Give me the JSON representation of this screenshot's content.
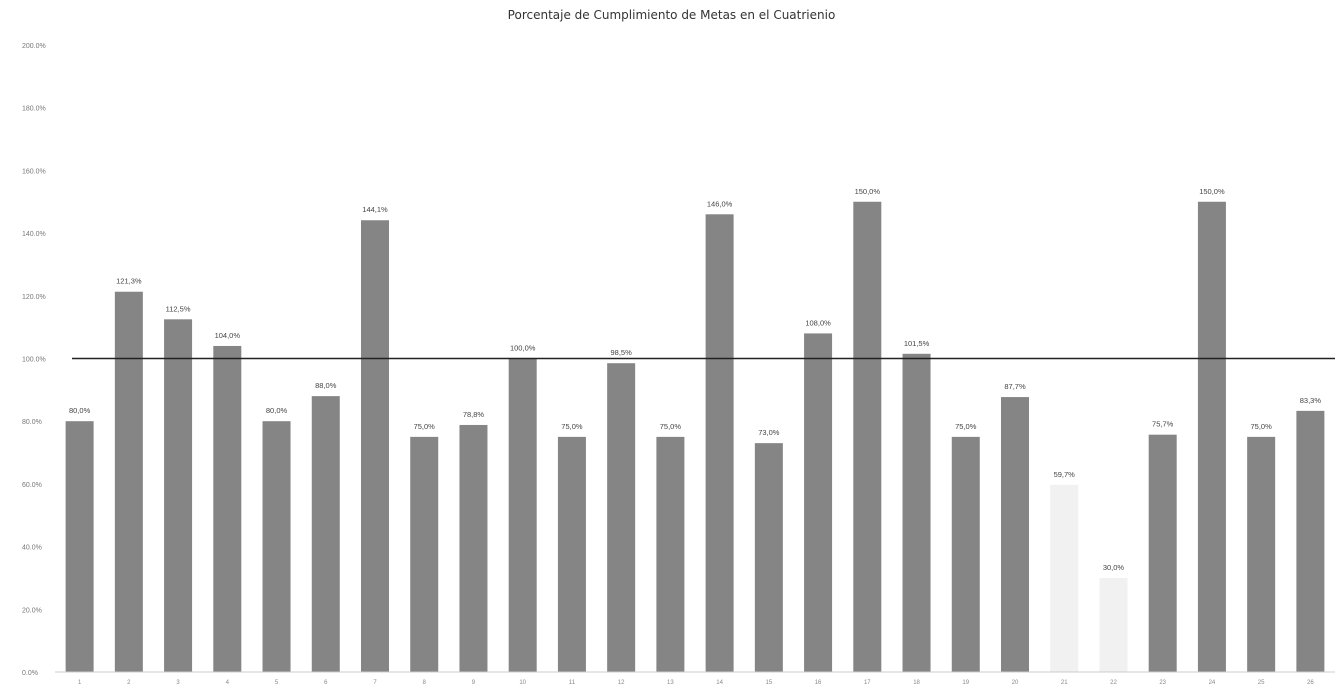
{
  "chart_data": {
    "type": "bar",
    "title": "Porcentaje de Cumplimiento de Metas en el Cuatrienio",
    "xlabel": "",
    "ylabel": "",
    "ylim": [
      0,
      200
    ],
    "yticks": [
      "0.0%",
      "20.0%",
      "40.0%",
      "60.0%",
      "80.0%",
      "100.0%",
      "120.0%",
      "140.0%",
      "160.0%",
      "180.0%",
      "200.0%"
    ],
    "reference_line": 100,
    "bar_color": "#858585",
    "faint_bar_color": "#f1f1f1",
    "line_color": "#222222",
    "categories": [
      "1",
      "2",
      "3",
      "4",
      "5",
      "6",
      "7",
      "8",
      "9",
      "10",
      "11",
      "12",
      "13",
      "14",
      "15",
      "16",
      "17",
      "18",
      "19",
      "20",
      "21",
      "22",
      "23",
      "24",
      "25",
      "26"
    ],
    "values": [
      80.0,
      121.3,
      112.5,
      104.0,
      80.0,
      88.0,
      144.1,
      75.0,
      78.8,
      100.0,
      75.0,
      98.5,
      75.0,
      146.0,
      73.0,
      108.0,
      150.0,
      101.5,
      75.0,
      87.7,
      59.7,
      30.0,
      75.7,
      150.0,
      75.0,
      83.3
    ],
    "labels": [
      "80,0%",
      "121,3%",
      "112,5%",
      "104,0%",
      "80,0%",
      "88,0%",
      "144,1%",
      "75,0%",
      "78,8%",
      "100,0%",
      "75,0%",
      "98,5%",
      "75,0%",
      "146,0%",
      "73,0%",
      "108,0%",
      "150,0%",
      "101,5%",
      "75,0%",
      "87,7%",
      "59,7%",
      "30,0%",
      "75,7%",
      "150,0%",
      "75,0%",
      "83,3%"
    ],
    "faint": [
      false,
      false,
      false,
      false,
      false,
      false,
      false,
      false,
      false,
      false,
      false,
      false,
      false,
      false,
      false,
      false,
      false,
      false,
      false,
      false,
      true,
      true,
      false,
      false,
      false,
      false
    ],
    "grid": false,
    "legend": "none"
  }
}
